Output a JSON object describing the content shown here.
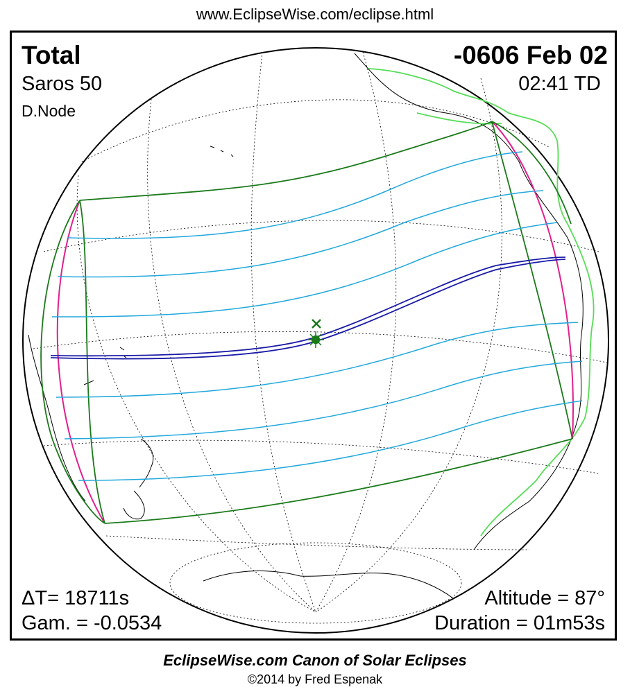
{
  "header": {
    "url": "www.EclipseWise.com/eclipse.html"
  },
  "eclipse": {
    "type": "Total",
    "date": "-0606 Feb 02",
    "saros": "Saros  50",
    "time": "02:41 TD",
    "node": "D.Node",
    "delta_t": "ΔT=  18711s",
    "gamma": "Gam. = -0.0534",
    "altitude": "Altitude = 87°",
    "duration": "Duration = 01m53s"
  },
  "footer": {
    "title": "EclipseWise.com Canon of Solar Eclipses",
    "copyright": "©2014 by Fred Espenak"
  },
  "colors": {
    "central_path": "#1a1aa8",
    "partial_lines": "#22a8dc",
    "penumbra_limits": "#1a7a1a",
    "rise_set_curves": "#e0208c",
    "coastline_shifted": "#55dd55",
    "coastline": "#000000"
  }
}
